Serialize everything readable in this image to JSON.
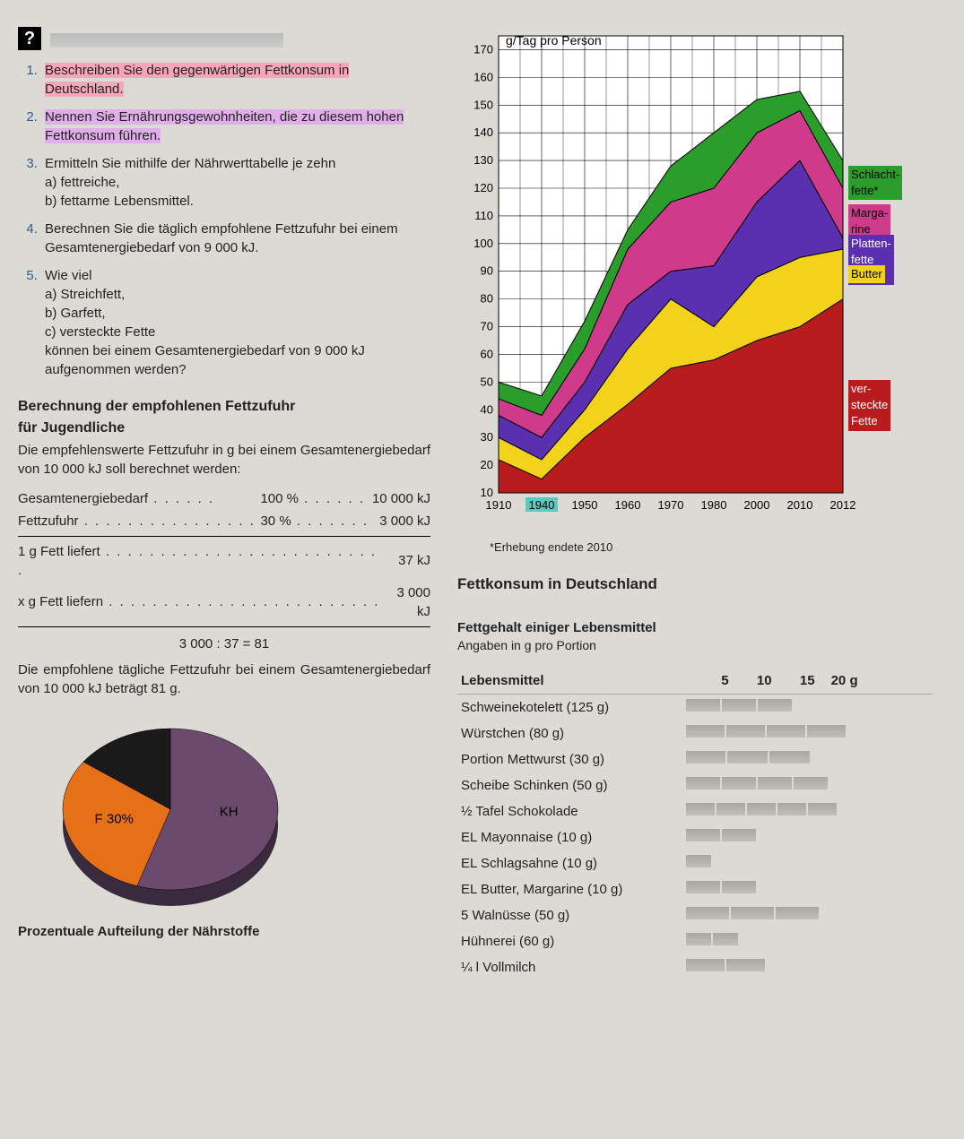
{
  "qmark": "?",
  "tasks": {
    "t1": "Beschreiben Sie den gegenwärtigen Fettkonsum in Deutschland.",
    "t2": "Nennen Sie Ernährungsgewohnheiten, die zu diesem hohen Fettkonsum führen.",
    "t3": "Ermitteln Sie mithilfe der Nährwerttabelle je zehn",
    "t3a": "a) fettreiche,",
    "t3b": "b) fettarme Lebensmittel.",
    "t4": "Berechnen Sie die täglich empfohlene Fettzufuhr bei einem Gesamtenergiebedarf von 9 000 kJ.",
    "t5": "Wie viel",
    "t5a": "a) Streichfett,",
    "t5b": "b) Garfett,",
    "t5c": "c) versteckte Fette",
    "t5end": "können bei einem Gesamtenergiebedarf von 9 000 kJ aufgenommen werden?"
  },
  "calc": {
    "heading1": "Berechnung der empfohlenen Fettzufuhr",
    "heading2": "für Jugendliche",
    "intro": "Die empfehlenswerte Fettzufuhr in g bei einem Gesamtenergiebedarf von 10 000 kJ soll berechnet werden:",
    "row1a": "Gesamtenergiebedarf",
    "row1b": "100 %",
    "row1c": "10 000 kJ",
    "row2a": "Fettzufuhr",
    "row2b": "30 %",
    "row2c": "3 000 kJ",
    "row3a": "1 g Fett liefert",
    "row3c": "37 kJ",
    "row4a": "x g Fett liefern",
    "row4c": "3 000 kJ",
    "formula": "3 000 : 37 = 81",
    "conclusion": "Die empfohlene tägliche Fettzufuhr bei einem Gesamtenergiebedarf von 10 000 kJ beträgt 81 g."
  },
  "pie": {
    "caption": "Prozentuale Aufteilung der Nährstoffe",
    "slices": [
      {
        "label": "KH",
        "value": 55,
        "color": "#6b4a6e"
      },
      {
        "label": "F 30%",
        "value": 30,
        "color": "#e57018"
      },
      {
        "label": "",
        "value": 15,
        "color": "#1a1a1a"
      }
    ]
  },
  "areaChart": {
    "type": "area-stacked",
    "ylabel": "g/Tag pro Person",
    "ylim": [
      10,
      175
    ],
    "ytick_step": 10,
    "xticks": [
      "1910",
      "1940",
      "1950",
      "1960",
      "1970",
      "1980",
      "2000",
      "2010",
      "2012"
    ],
    "hl_year": "1940",
    "footnote": "*Erhebung endete 2010",
    "title": "Fettkonsum in Deutschland",
    "grid_color": "#000000",
    "background": "#ffffff",
    "series": [
      {
        "name": "versteckte Fette",
        "color": "#b81c1c",
        "label": "ver-\nsteckte\nFette"
      },
      {
        "name": "Butter",
        "color": "#f2d21a",
        "label": "Butter"
      },
      {
        "name": "Plattenfette/Öle",
        "color": "#5a2fb0",
        "label": "Platten-\nfette\nÖle"
      },
      {
        "name": "Margarine",
        "color": "#d03a8a",
        "label": "Marga-\nrine"
      },
      {
        "name": "Schlachtfette",
        "color": "#2a9d2a",
        "label": "Schlacht-\nfette*"
      }
    ],
    "cumulative": {
      "x": [
        1910,
        1940,
        1950,
        1960,
        1970,
        1980,
        2000,
        2010,
        2012
      ],
      "top_versteckt": [
        22,
        15,
        30,
        42,
        55,
        58,
        65,
        70,
        80
      ],
      "top_butter": [
        30,
        22,
        40,
        62,
        80,
        70,
        88,
        95,
        98
      ],
      "top_platten": [
        38,
        30,
        50,
        78,
        90,
        92,
        115,
        130,
        102
      ],
      "top_margarine": [
        44,
        38,
        62,
        98,
        115,
        120,
        140,
        148,
        120
      ],
      "top_schlacht": [
        50,
        45,
        72,
        105,
        128,
        140,
        152,
        155,
        130
      ]
    }
  },
  "foodTable": {
    "heading": "Fettgehalt einiger Lebensmittel",
    "sub": "Angaben in g pro Portion",
    "col_label": "Lebensmittel",
    "ticks": [
      "5",
      "10",
      "15",
      "20 g"
    ],
    "rows": [
      {
        "n": "Schweinekotelett (125 g)",
        "v": 12,
        "segs": 3
      },
      {
        "n": "Würstchen (80 g)",
        "v": 18,
        "segs": 4
      },
      {
        "n": "Portion Mettwurst (30 g)",
        "v": 14,
        "segs": 3
      },
      {
        "n": "Scheibe Schinken (50 g)",
        "v": 16,
        "segs": 4
      },
      {
        "n": "½ Tafel Schokolade",
        "v": 17,
        "segs": 5
      },
      {
        "n": "EL Mayonnaise (10 g)",
        "v": 8,
        "segs": 2
      },
      {
        "n": "EL Schlagsahne (10 g)",
        "v": 3,
        "segs": 1
      },
      {
        "n": "EL Butter, Margarine (10 g)",
        "v": 8,
        "segs": 2
      },
      {
        "n": "5 Walnüsse (50 g)",
        "v": 15,
        "segs": 3
      },
      {
        "n": "Hühnerei (60 g)",
        "v": 6,
        "segs": 2
      },
      {
        "n": "¼ l Vollmilch",
        "v": 9,
        "segs": 2
      }
    ]
  }
}
